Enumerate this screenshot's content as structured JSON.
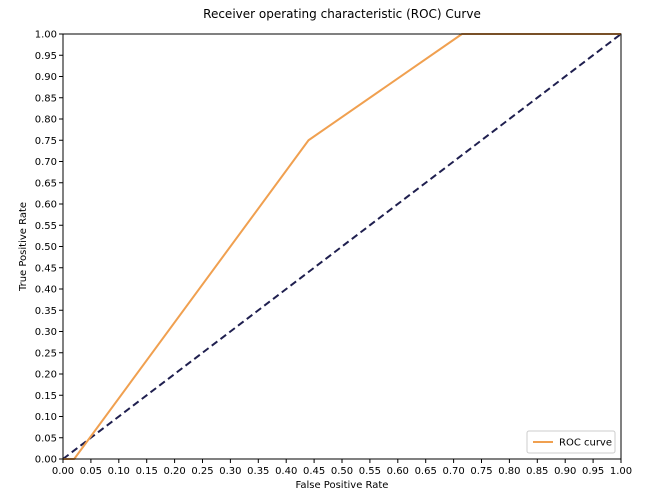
{
  "chart_data": {
    "type": "line",
    "title": "Receiver operating characteristic (ROC) Curve",
    "xlabel": "False Positive Rate",
    "ylabel": "True Positive Rate",
    "xlim": [
      0,
      1
    ],
    "ylim": [
      0,
      1
    ],
    "x_ticks": [
      "0.00",
      "0.05",
      "0.10",
      "0.15",
      "0.20",
      "0.25",
      "0.30",
      "0.35",
      "0.40",
      "0.45",
      "0.50",
      "0.55",
      "0.60",
      "0.65",
      "0.70",
      "0.75",
      "0.80",
      "0.85",
      "0.90",
      "0.95",
      "1.00"
    ],
    "y_ticks": [
      "0.00",
      "0.05",
      "0.10",
      "0.15",
      "0.20",
      "0.25",
      "0.30",
      "0.35",
      "0.40",
      "0.45",
      "0.50",
      "0.55",
      "0.60",
      "0.65",
      "0.70",
      "0.75",
      "0.80",
      "0.85",
      "0.90",
      "0.95",
      "1.00"
    ],
    "grid": false,
    "legend_position": "lower-right",
    "series": [
      {
        "name": "ROC curve",
        "color": "#f0a050",
        "style": "solid",
        "x": [
          0.0,
          0.02,
          0.44,
          0.715,
          1.0
        ],
        "y": [
          0.0,
          0.0,
          0.75,
          1.0,
          1.0
        ]
      },
      {
        "color": "#1f1f4f",
        "style": "dashed",
        "x": [
          0.0,
          1.0
        ],
        "y": [
          0.0,
          1.0
        ]
      }
    ]
  }
}
